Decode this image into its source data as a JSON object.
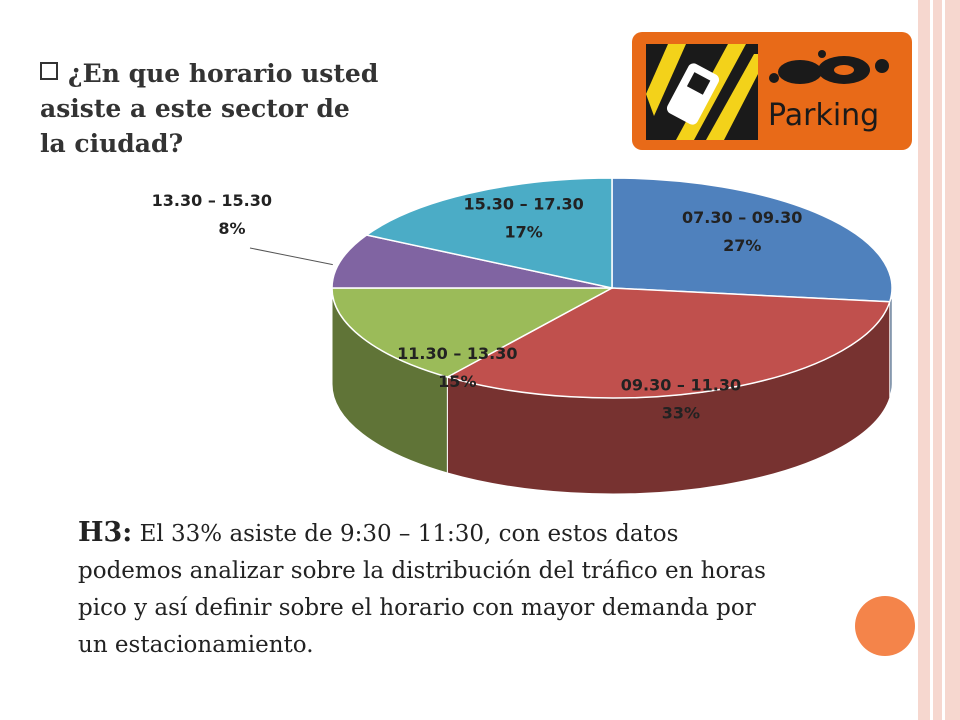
{
  "slide": {
    "question": "¿En que horario usted asiste a este sector de la ciudad?",
    "logo_text": "Parking",
    "conclusion_label": "H3:",
    "conclusion_text": " El 33% asiste de 9:30 – 11:30, con estos datos podemos analizar sobre la distribución del tráfico en horas pico y así definir sobre el horario con  mayor demanda por un estacionamiento."
  },
  "chart_data": {
    "type": "pie",
    "style": "3d",
    "title": "",
    "slices": [
      {
        "label": "07.30 – 09.30",
        "value": 27,
        "value_label": "27%",
        "color": "#4f81bd"
      },
      {
        "label": "09.30 – 11.30",
        "value": 33,
        "value_label": "33%",
        "color": "#c0504d"
      },
      {
        "label": "11.30 – 13.30",
        "value": 15,
        "value_label": "15%",
        "color": "#9bbb59"
      },
      {
        "label": "13.30 – 15.30",
        "value": 8,
        "value_label": "8%",
        "color": "#8064a2"
      },
      {
        "label": "15.30 – 17.30",
        "value": 17,
        "value_label": "17%",
        "color": "#4bacc6"
      }
    ]
  },
  "colors": {
    "accent": "#f4844a",
    "stripe": "#f6d7cf",
    "logo_bg": "#e86a18"
  }
}
